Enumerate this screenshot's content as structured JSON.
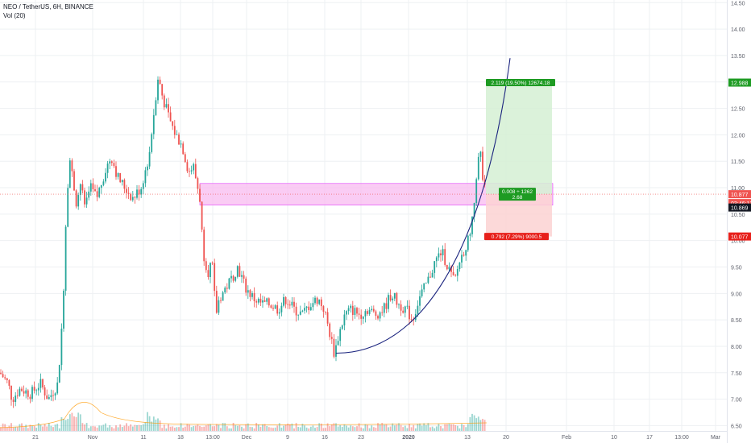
{
  "header": {
    "title": "NEO / TetherUS, 6H, BINANCE",
    "volume_indicator": "Vol (20)"
  },
  "colors": {
    "up": "#26a69a",
    "down": "#ef5350",
    "grid": "#eef0f3",
    "axis_text": "#5d606b",
    "curve": "#1a237e",
    "zone_fill": "#f8bbf0",
    "zone_stroke": "#e040fb",
    "target_fill": "#d5f0d3",
    "stop_fill": "#fbd2d2",
    "target_label": "#1e9b23",
    "stop_label": "#e7201b",
    "current_price_line": "#ef5350"
  },
  "chart_data": {
    "type": "candlestick",
    "symbol": "NEO / TetherUS",
    "timeframe": "6H",
    "exchange": "BINANCE",
    "indicator": "Vol (20)",
    "y_axis": {
      "min": 6.4,
      "max": 14.55,
      "ticks": [
        "6.50",
        "7.00",
        "7.50",
        "8.00",
        "8.50",
        "9.00",
        "9.50",
        "10.00",
        "10.50",
        "11.00",
        "11.50",
        "12.00",
        "12.50",
        "13.00",
        "13.50",
        "14.00",
        "14.50"
      ]
    },
    "x_axis": {
      "ticks": [
        "21",
        "Nov",
        "11",
        "18",
        "13:00",
        "Dec",
        "9",
        "16",
        "23",
        "2020",
        "13",
        "20",
        "Feb",
        "10",
        "17",
        "13:00",
        "Mar"
      ]
    },
    "price_path": [
      [
        0,
        7.5
      ],
      [
        10,
        7.3
      ],
      [
        15,
        7.0
      ],
      [
        25,
        7.2
      ],
      [
        38,
        7.1
      ],
      [
        50,
        7.3
      ],
      [
        60,
        7.0
      ],
      [
        72,
        7.3
      ],
      [
        78,
        8.7
      ],
      [
        82,
        10.5
      ],
      [
        86,
        11.6
      ],
      [
        90,
        11.2
      ],
      [
        95,
        10.7
      ],
      [
        100,
        11.1
      ],
      [
        105,
        10.6
      ],
      [
        112,
        11.0
      ],
      [
        120,
        10.8
      ],
      [
        130,
        11.3
      ],
      [
        138,
        11.6
      ],
      [
        146,
        11.2
      ],
      [
        155,
        11.0
      ],
      [
        165,
        10.8
      ],
      [
        175,
        11.0
      ],
      [
        185,
        11.6
      ],
      [
        190,
        12.3
      ],
      [
        196,
        13.1
      ],
      [
        202,
        12.7
      ],
      [
        210,
        12.3
      ],
      [
        218,
        12.0
      ],
      [
        226,
        11.8
      ],
      [
        234,
        11.3
      ],
      [
        240,
        11.4
      ],
      [
        248,
        10.8
      ],
      [
        252,
        9.8
      ],
      [
        258,
        9.4
      ],
      [
        263,
        9.6
      ],
      [
        268,
        8.6
      ],
      [
        272,
        8.9
      ],
      [
        280,
        9.1
      ],
      [
        288,
        9.3
      ],
      [
        295,
        9.5
      ],
      [
        305,
        9.1
      ],
      [
        315,
        8.9
      ],
      [
        325,
        8.8
      ],
      [
        335,
        8.8
      ],
      [
        345,
        8.7
      ],
      [
        355,
        8.9
      ],
      [
        365,
        8.7
      ],
      [
        375,
        8.6
      ],
      [
        385,
        8.8
      ],
      [
        395,
        8.9
      ],
      [
        402,
        8.7
      ],
      [
        410,
        8.2
      ],
      [
        415,
        7.85
      ],
      [
        420,
        8.2
      ],
      [
        428,
        8.6
      ],
      [
        436,
        8.7
      ],
      [
        446,
        8.6
      ],
      [
        456,
        8.7
      ],
      [
        466,
        8.6
      ],
      [
        476,
        8.7
      ],
      [
        486,
        9.0
      ],
      [
        494,
        8.8
      ],
      [
        504,
        8.7
      ],
      [
        512,
        8.5
      ],
      [
        520,
        8.9
      ],
      [
        530,
        9.2
      ],
      [
        540,
        9.6
      ],
      [
        548,
        9.8
      ],
      [
        556,
        9.5
      ],
      [
        564,
        9.2
      ],
      [
        570,
        9.6
      ],
      [
        578,
        9.9
      ],
      [
        584,
        10.1
      ],
      [
        588,
        10.6
      ],
      [
        592,
        11.4
      ],
      [
        596,
        11.7
      ],
      [
        600,
        11.0
      ],
      [
        604,
        10.9
      ]
    ],
    "current_price": 10.877,
    "countdown": "03:46:13",
    "indicator_price": 10.869,
    "resistance_zone": {
      "top": 11.08,
      "bottom": 10.67
    },
    "long_position": {
      "entry": 10.877,
      "target": 12.988,
      "stop": 10.077,
      "target_label": "2.119 (19.50%) 12674.18",
      "center_label_line1": "0.008 ÷ 1262",
      "center_label_line2": "2.68",
      "stop_label": "0.792 (7.29%) 9000.5"
    },
    "price_badges": {
      "target": "12.988",
      "current": "10.877",
      "countdown": "03:46:13",
      "indicator": "10.869",
      "stop": "10.077"
    },
    "curve_annotation": {
      "start_price": 7.87,
      "end_price": 13.45
    },
    "grid": true
  }
}
